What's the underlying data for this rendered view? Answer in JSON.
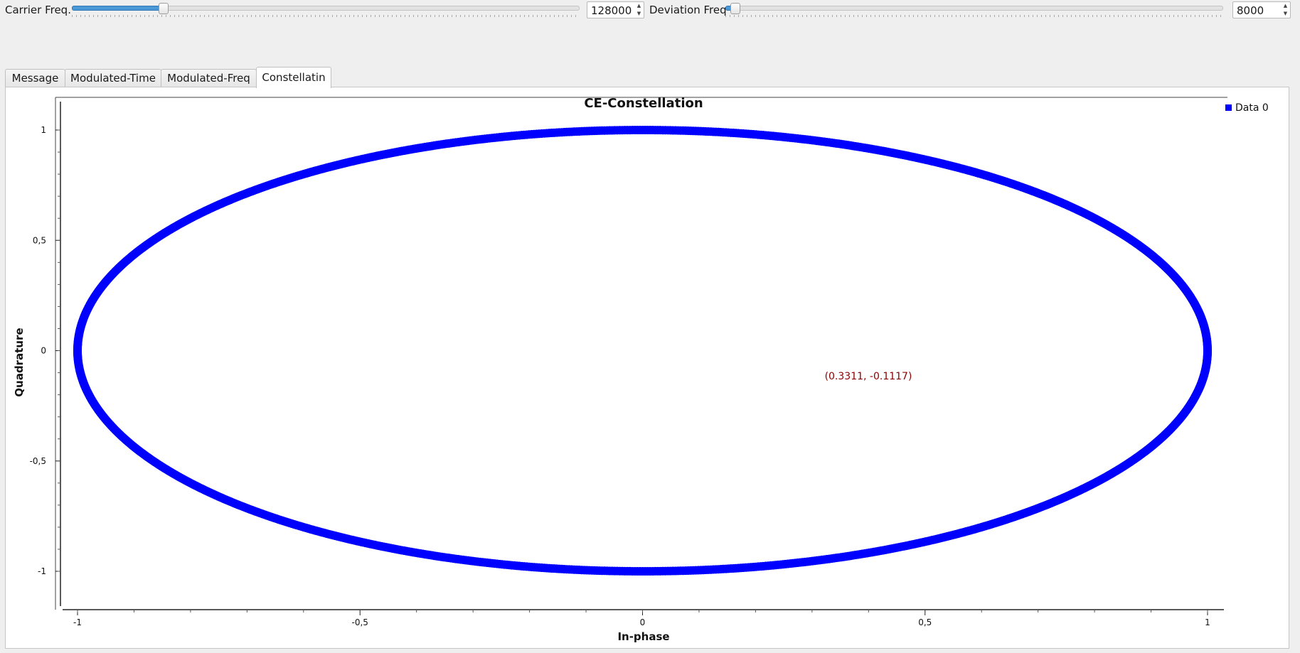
{
  "controls": {
    "carrier": {
      "label": "Carrier Freq.",
      "value": "128000",
      "slider_fraction": 0.18
    },
    "deviation": {
      "label": "Deviation Freq",
      "value": "8000",
      "slider_fraction": 0.02
    }
  },
  "tabs": [
    {
      "label": "Message"
    },
    {
      "label": "Modulated-Time"
    },
    {
      "label": "Modulated-Freq"
    },
    {
      "label": "Constellatin",
      "active": true
    }
  ],
  "chart_data": {
    "type": "scatter",
    "title": "CE-Constellation",
    "xlabel": "In-phase",
    "ylabel": "Quadrature",
    "xlim": [
      -1.0,
      1.0
    ],
    "ylim": [
      -1.1,
      1.1
    ],
    "x_ticks": [
      "-1",
      "-0,5",
      "0",
      "0,5",
      "1"
    ],
    "x_tick_values": [
      -1,
      -0.5,
      0,
      0.5,
      1
    ],
    "y_ticks": [
      "1",
      "0,5",
      "0",
      "-0,5",
      "-1"
    ],
    "y_tick_values": [
      1,
      0.5,
      0,
      -0.5,
      -1
    ],
    "legend": {
      "position": "top-right",
      "entries": [
        "Data 0"
      ]
    },
    "series": [
      {
        "name": "Data 0",
        "color": "#0000ff",
        "shape": "unit-circle",
        "radius": 1.0
      }
    ],
    "annotation": "(0.3311, -0.1117)"
  }
}
